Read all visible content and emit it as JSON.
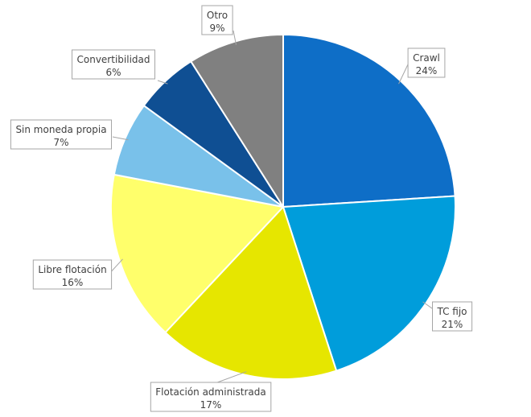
{
  "chart_data": {
    "type": "pie",
    "title": "",
    "slices": [
      {
        "label": "Crawl",
        "value": 24,
        "pct_label": "24%",
        "color": "#0e6ec7"
      },
      {
        "label": "TC fijo",
        "value": 21,
        "pct_label": "21%",
        "color": "#009ddb"
      },
      {
        "label": "Flotación administrada",
        "value": 17,
        "pct_label": "17%",
        "color": "#e6e600"
      },
      {
        "label": "Libre flotación",
        "value": 16,
        "pct_label": "16%",
        "color": "#ffff6b"
      },
      {
        "label": "Sin moneda propia",
        "value": 7,
        "pct_label": "7%",
        "color": "#79c1ea"
      },
      {
        "label": "Convertibilidad",
        "value": 6,
        "pct_label": "6%",
        "color": "#0f4f93"
      },
      {
        "label": "Otro",
        "value": 9,
        "pct_label": "9%",
        "color": "#808080"
      }
    ],
    "start": "12 o'clock",
    "direction": "clockwise",
    "legend": "none"
  }
}
